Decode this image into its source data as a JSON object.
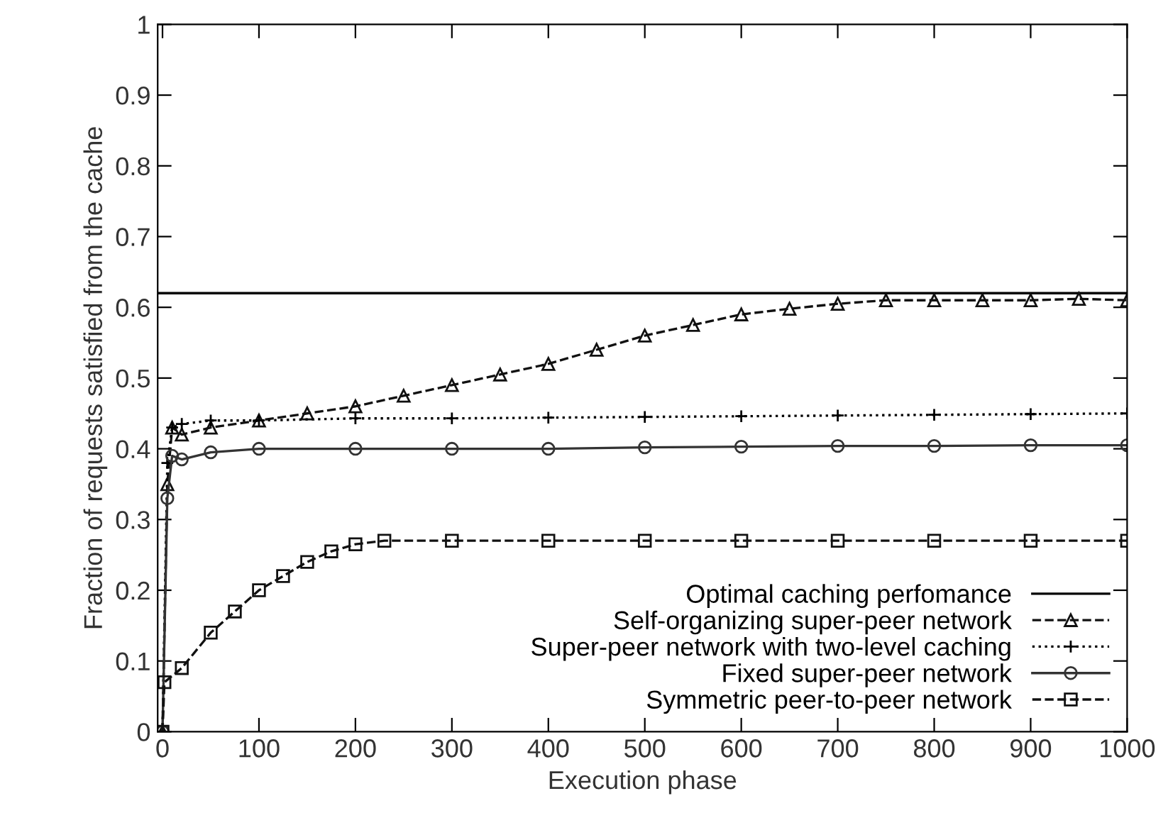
{
  "chart_data": {
    "type": "line",
    "xlabel": "Execution phase",
    "ylabel": "Fraction of requests satisfied from the cache",
    "xlim": [
      -5,
      1000
    ],
    "xticks": [
      0,
      100,
      200,
      300,
      400,
      500,
      600,
      700,
      800,
      900,
      1000
    ],
    "ylim": [
      0,
      1
    ],
    "yticks": [
      0,
      0.1,
      0.2,
      0.3,
      0.4,
      0.5,
      0.6,
      0.7,
      0.8,
      0.9,
      1
    ],
    "grid": false,
    "legend": "bottom right",
    "series": [
      {
        "name": "Optimal caching perfomance",
        "color": "#000000",
        "marker": "none",
        "line_style": "solid",
        "x": [
          -5,
          1000
        ],
        "values": [
          0.62,
          0.62
        ]
      },
      {
        "name": "Self-organizing super-peer network",
        "color": "#111111",
        "marker": "triangle",
        "line_style": "dashed",
        "x": [
          0,
          5,
          10,
          20,
          50,
          100,
          150,
          200,
          250,
          300,
          350,
          400,
          450,
          500,
          550,
          600,
          650,
          700,
          750,
          800,
          850,
          900,
          950,
          1000
        ],
        "values": [
          0,
          0.35,
          0.43,
          0.42,
          0.43,
          0.44,
          0.45,
          0.46,
          0.475,
          0.49,
          0.505,
          0.52,
          0.54,
          0.56,
          0.575,
          0.59,
          0.598,
          0.605,
          0.61,
          0.61,
          0.61,
          0.61,
          0.612,
          0.61
        ]
      },
      {
        "name": "Super-peer network with two-level caching",
        "color": "#000000",
        "marker": "cross",
        "line_style": "dotted",
        "x": [
          0,
          5,
          10,
          20,
          50,
          100,
          200,
          300,
          400,
          500,
          600,
          700,
          800,
          900,
          1000
        ],
        "values": [
          0,
          0.38,
          0.43,
          0.435,
          0.44,
          0.44,
          0.443,
          0.443,
          0.444,
          0.445,
          0.446,
          0.447,
          0.448,
          0.449,
          0.45
        ]
      },
      {
        "name": "Fixed super-peer network",
        "color": "#333333",
        "marker": "circle",
        "line_style": "solid",
        "x": [
          0,
          5,
          10,
          20,
          50,
          100,
          200,
          300,
          400,
          500,
          600,
          700,
          800,
          900,
          1000
        ],
        "values": [
          0,
          0.33,
          0.39,
          0.385,
          0.395,
          0.4,
          0.4,
          0.4,
          0.4,
          0.402,
          0.403,
          0.404,
          0.404,
          0.405,
          0.405
        ]
      },
      {
        "name": "Symmetric peer-to-peer network",
        "color": "#111111",
        "marker": "square",
        "line_style": "dashed",
        "x": [
          0,
          2,
          20,
          50,
          75,
          100,
          125,
          150,
          175,
          200,
          230,
          300,
          400,
          500,
          600,
          700,
          800,
          900,
          1000
        ],
        "values": [
          0,
          0.07,
          0.09,
          0.14,
          0.17,
          0.2,
          0.22,
          0.24,
          0.255,
          0.265,
          0.27,
          0.27,
          0.27,
          0.27,
          0.27,
          0.27,
          0.27,
          0.27,
          0.27
        ]
      }
    ]
  }
}
